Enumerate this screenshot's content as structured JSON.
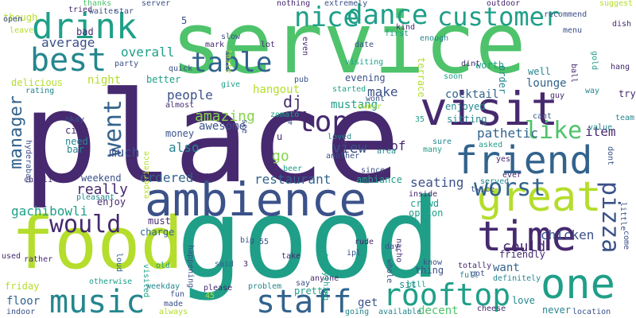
{
  "palette": {
    "dark_purple": "#46296f",
    "indigo": "#3b5189",
    "slate_blue": "#32638d",
    "teal": "#25868e",
    "green_teal": "#1f9f88",
    "green": "#4ec36b",
    "lime": "#b4dd2c",
    "light_green": "#84d44b",
    "blue": "#2c728e"
  },
  "words": [
    {
      "text": "place",
      "color": "dark_purple"
    },
    {
      "text": "service",
      "color": "green"
    },
    {
      "text": "good",
      "color": "green_teal"
    },
    {
      "text": "food",
      "color": "lime"
    },
    {
      "text": "ambience",
      "color": "indigo"
    },
    {
      "text": "visit",
      "color": "dark_purple"
    },
    {
      "text": "great",
      "color": "lime"
    },
    {
      "text": "time",
      "color": "dark_purple"
    },
    {
      "text": "friend",
      "color": "slate_blue"
    },
    {
      "text": "one",
      "color": "green_teal"
    },
    {
      "text": "staff",
      "color": "slate_blue"
    },
    {
      "text": "music",
      "color": "teal"
    },
    {
      "text": "rooftop",
      "color": "green_teal"
    },
    {
      "text": "drink",
      "color": "green_teal"
    },
    {
      "text": "best",
      "color": "teal"
    },
    {
      "text": "customer",
      "color": "green_teal"
    },
    {
      "text": "table",
      "color": "slate_blue"
    },
    {
      "text": "nice",
      "color": "green_teal"
    },
    {
      "text": "dance",
      "color": "green_teal"
    },
    {
      "text": "top",
      "color": "dark_purple"
    },
    {
      "text": "worst",
      "color": "slate_blue"
    },
    {
      "text": "like",
      "color": "green"
    },
    {
      "text": "would",
      "color": "dark_purple"
    },
    {
      "text": "pizza",
      "color": "indigo"
    },
    {
      "text": "manager",
      "color": "slate_blue"
    },
    {
      "text": "went",
      "color": "slate_blue"
    },
    {
      "text": "average",
      "color": "indigo"
    },
    {
      "text": "dj",
      "color": "dark_purple"
    },
    {
      "text": "really",
      "color": "dark_purple"
    },
    {
      "text": "view",
      "color": "indigo"
    },
    {
      "text": "amazing",
      "color": "light_green"
    },
    {
      "text": "people",
      "color": "indigo"
    },
    {
      "text": "overall",
      "color": "green_teal"
    },
    {
      "text": "restaurant",
      "color": "slate_blue"
    },
    {
      "text": "seating",
      "color": "indigo"
    },
    {
      "text": "ordered",
      "color": "slate_blue"
    },
    {
      "text": "cocktail",
      "color": "slate_blue"
    },
    {
      "text": "pathetic",
      "color": "slate_blue"
    },
    {
      "text": "item",
      "color": "dark_purple"
    },
    {
      "text": "chicken",
      "color": "indigo"
    },
    {
      "text": "could",
      "color": "dark_purple"
    },
    {
      "text": "go",
      "color": "light_green"
    },
    {
      "text": "also",
      "color": "teal"
    },
    {
      "text": "much",
      "color": "indigo"
    },
    {
      "text": "roof",
      "color": "dark_purple"
    },
    {
      "text": "lounge",
      "color": "slate_blue"
    },
    {
      "text": "make",
      "color": "indigo"
    },
    {
      "text": "mustang",
      "color": "green_teal"
    },
    {
      "text": "awesome",
      "color": "indigo"
    },
    {
      "text": "gachibowli",
      "color": "green_teal"
    },
    {
      "text": "night",
      "color": "lime"
    },
    {
      "text": "hangout",
      "color": "lime"
    },
    {
      "text": "evening",
      "color": "indigo"
    },
    {
      "text": "floor",
      "color": "slate_blue"
    },
    {
      "text": "get",
      "color": "indigo"
    },
    {
      "text": "want",
      "color": "slate_blue"
    },
    {
      "text": "worth",
      "color": "green_teal"
    },
    {
      "text": "well",
      "color": "teal"
    },
    {
      "text": "friendly",
      "color": "dark_purple"
    },
    {
      "text": "love",
      "color": "teal"
    },
    {
      "text": "ambiance",
      "color": "green_teal"
    },
    {
      "text": "bar",
      "color": "teal"
    },
    {
      "text": "bad",
      "color": "dark_purple"
    },
    {
      "text": "though",
      "color": "lime"
    },
    {
      "text": "friday",
      "color": "lime"
    },
    {
      "text": "sit",
      "color": "teal"
    },
    {
      "text": "pretty",
      "color": "green_teal"
    },
    {
      "text": "decent",
      "color": "green"
    },
    {
      "text": "never",
      "color": "teal"
    },
    {
      "text": "location",
      "color": "indigo"
    },
    {
      "text": "cheese",
      "color": "dark_purple"
    },
    {
      "text": "full",
      "color": "teal"
    },
    {
      "text": "got",
      "color": "indigo"
    },
    {
      "text": "definitely",
      "color": "teal"
    },
    {
      "text": "thing",
      "color": "indigo"
    },
    {
      "text": "say",
      "color": "indigo"
    },
    {
      "text": "take",
      "color": "dark_purple"
    },
    {
      "text": "55",
      "color": "indigo"
    },
    {
      "text": "3",
      "color": "dark_purple"
    },
    {
      "text": "ipl",
      "color": "indigo"
    },
    {
      "text": "day",
      "color": "indigo"
    },
    {
      "text": "charge",
      "color": "slate_blue"
    },
    {
      "text": "must",
      "color": "dark_purple"
    },
    {
      "text": "enjoy",
      "color": "dark_purple"
    },
    {
      "text": "weekend",
      "color": "indigo"
    },
    {
      "text": "seat",
      "color": "dark_purple"
    },
    {
      "text": "u",
      "color": "dark_purple"
    },
    {
      "text": "4",
      "color": "indigo"
    },
    {
      "text": "experience",
      "color": "lime"
    },
    {
      "text": "money",
      "color": "indigo"
    },
    {
      "text": "city",
      "color": "dark_purple"
    },
    {
      "text": "need",
      "color": "teal"
    },
    {
      "text": "okay",
      "color": "indigo"
    },
    {
      "text": "almost",
      "color": "dark_purple"
    },
    {
      "text": "better",
      "color": "green_teal"
    },
    {
      "text": "waiter",
      "color": "indigo"
    },
    {
      "text": "star",
      "color": "indigo"
    },
    {
      "text": "party",
      "color": "indigo"
    },
    {
      "text": "quick",
      "color": "indigo"
    },
    {
      "text": "delicious",
      "color": "lime"
    },
    {
      "text": "rating",
      "color": "teal"
    },
    {
      "text": "leave",
      "color": "lime"
    },
    {
      "text": "open",
      "color": "indigo"
    },
    {
      "text": "thanks",
      "color": "green"
    },
    {
      "text": "tried",
      "color": "dark_purple"
    },
    {
      "text": "server",
      "color": "indigo"
    },
    {
      "text": "nothing",
      "color": "dark_purple"
    },
    {
      "text": "extremely",
      "color": "indigo"
    },
    {
      "text": "outdoor",
      "color": "dark_purple"
    },
    {
      "text": "recommend",
      "color": "indigo"
    },
    {
      "text": "suggest",
      "color": "lime"
    },
    {
      "text": "dish",
      "color": "dark_purple"
    },
    {
      "text": "menu",
      "color": "indigo"
    },
    {
      "text": "kind",
      "color": "dark_purple"
    },
    {
      "text": "first",
      "color": "green_teal"
    },
    {
      "text": "enough",
      "color": "teal"
    },
    {
      "text": "date",
      "color": "indigo"
    },
    {
      "text": "visiting",
      "color": "green_teal"
    },
    {
      "text": "lot",
      "color": "dark_purple"
    },
    {
      "text": "mark",
      "color": "dark_purple"
    },
    {
      "text": "slow",
      "color": "indigo"
    },
    {
      "text": "taste",
      "color": "lime"
    },
    {
      "text": "even",
      "color": "dark_purple"
    },
    {
      "text": "give",
      "color": "green_teal"
    },
    {
      "text": "pub",
      "color": "indigo"
    },
    {
      "text": "started",
      "color": "green_teal"
    },
    {
      "text": "wont",
      "color": "indigo"
    },
    {
      "text": "owner",
      "color": "lime"
    },
    {
      "text": "zomato",
      "color": "green_teal"
    },
    {
      "text": "35",
      "color": "green_teal"
    },
    {
      "text": "sitting",
      "color": "teal"
    },
    {
      "text": "enjoyed",
      "color": "teal"
    },
    {
      "text": "terrace",
      "color": "lime"
    },
    {
      "text": "order",
      "color": "teal"
    },
    {
      "text": "dint",
      "color": "dark_purple"
    },
    {
      "text": "soon",
      "color": "green_teal"
    },
    {
      "text": "ball",
      "color": "dark_purple"
    },
    {
      "text": "hang",
      "color": "dark_purple"
    },
    {
      "text": "guy",
      "color": "dark_purple"
    },
    {
      "text": "way",
      "color": "teal"
    },
    {
      "text": "try",
      "color": "dark_purple"
    },
    {
      "text": "cant",
      "color": "indigo"
    },
    {
      "text": "team",
      "color": "teal"
    },
    {
      "text": "value",
      "color": "teal"
    },
    {
      "text": "yes",
      "color": "dark_purple"
    },
    {
      "text": "asked",
      "color": "green_teal"
    },
    {
      "text": "served",
      "color": "teal"
    },
    {
      "text": "twice",
      "color": "indigo"
    },
    {
      "text": "ever",
      "color": "dark_purple"
    },
    {
      "text": "dont",
      "color": "indigo"
    },
    {
      "text": "little",
      "color": "indigo"
    },
    {
      "text": "come",
      "color": "indigo"
    },
    {
      "text": "sure",
      "color": "teal"
    },
    {
      "text": "area",
      "color": "teal"
    },
    {
      "text": "many",
      "color": "green_teal"
    },
    {
      "text": "since",
      "color": "indigo"
    },
    {
      "text": "inside",
      "color": "dark_purple"
    },
    {
      "text": "option",
      "color": "green_teal"
    },
    {
      "text": "crowd",
      "color": "green_teal"
    },
    {
      "text": "loved",
      "color": "teal"
    },
    {
      "text": "another",
      "color": "indigo"
    },
    {
      "text": "beer",
      "color": "green_teal"
    },
    {
      "text": "see",
      "color": "indigo"
    },
    {
      "text": "hyderabad",
      "color": "indigo"
    },
    {
      "text": "chilli",
      "color": "dark_purple"
    },
    {
      "text": "pleasant",
      "color": "teal"
    },
    {
      "text": "used",
      "color": "dark_purple"
    },
    {
      "text": "rather",
      "color": "dark_purple"
    },
    {
      "text": "indoor",
      "color": "indigo"
    },
    {
      "text": "otherwise",
      "color": "green_teal"
    },
    {
      "text": "weekday",
      "color": "teal"
    },
    {
      "text": "visited",
      "color": "green_teal"
    },
    {
      "text": "old",
      "color": "green_teal"
    },
    {
      "text": "made",
      "color": "indigo"
    },
    {
      "text": "fun",
      "color": "indigo"
    },
    {
      "text": "always",
      "color": "lime"
    },
    {
      "text": "45",
      "color": "lime"
    },
    {
      "text": "please",
      "color": "dark_purple"
    },
    {
      "text": "said",
      "color": "slate_blue"
    },
    {
      "text": "happening",
      "color": "indigo"
    },
    {
      "text": "loud",
      "color": "slate_blue"
    },
    {
      "text": "big",
      "color": "indigo"
    },
    {
      "text": "problem",
      "color": "teal"
    },
    {
      "text": "anyone",
      "color": "dark_purple"
    },
    {
      "text": "everything",
      "color": "green_teal"
    },
    {
      "text": "rude",
      "color": "dark_purple"
    },
    {
      "text": "whole",
      "color": "indigo"
    },
    {
      "text": "nacho",
      "color": "dark_purple"
    },
    {
      "text": "bill",
      "color": "green_teal"
    },
    {
      "text": "going",
      "color": "teal"
    },
    {
      "text": "available",
      "color": "teal"
    },
    {
      "text": "know",
      "color": "indigo"
    },
    {
      "text": "totally",
      "color": "dark_purple"
    },
    {
      "text": "5",
      "color": "indigo"
    },
    {
      "text": "gold",
      "color": "green_teal"
    }
  ]
}
